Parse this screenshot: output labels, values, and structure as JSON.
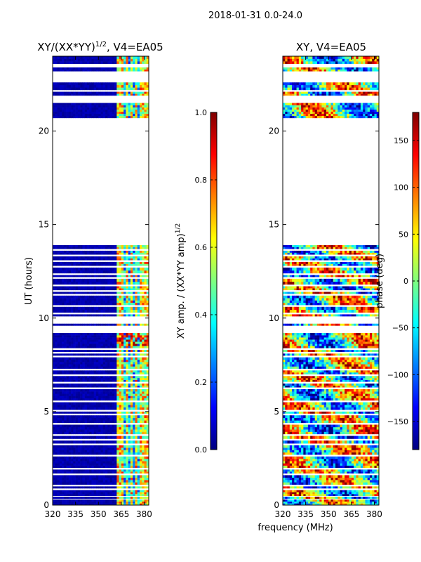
{
  "figure_title": "2018-01-31 0.0-24.0",
  "x_axis_shared_label": "frequency (MHz)",
  "colormap": [
    "#00007f",
    "#0000ff",
    "#007fff",
    "#00ffff",
    "#7fff7f",
    "#ffff00",
    "#ff7f00",
    "#ff0000",
    "#7f0000"
  ],
  "data_blocks": [
    {
      "start": 0.0,
      "end": 0.3
    },
    {
      "start": 0.35,
      "end": 0.45
    },
    {
      "start": 0.5,
      "end": 0.8
    },
    {
      "start": 0.9,
      "end": 1.0
    },
    {
      "start": 1.1,
      "end": 1.6
    },
    {
      "start": 1.7,
      "end": 1.9
    },
    {
      "start": 2.0,
      "end": 2.6
    },
    {
      "start": 2.7,
      "end": 3.2
    },
    {
      "start": 3.3,
      "end": 3.45
    },
    {
      "start": 3.55,
      "end": 3.7
    },
    {
      "start": 3.8,
      "end": 4.3
    },
    {
      "start": 4.4,
      "end": 4.8
    },
    {
      "start": 4.9,
      "end": 5.0
    },
    {
      "start": 5.1,
      "end": 5.5
    },
    {
      "start": 5.6,
      "end": 6.2
    },
    {
      "start": 6.3,
      "end": 6.5
    },
    {
      "start": 6.6,
      "end": 6.9
    },
    {
      "start": 7.0,
      "end": 7.2
    },
    {
      "start": 7.3,
      "end": 7.9
    },
    {
      "start": 8.0,
      "end": 8.1
    },
    {
      "start": 8.2,
      "end": 8.3
    },
    {
      "start": 8.4,
      "end": 9.2
    },
    {
      "start": 9.6,
      "end": 9.7
    },
    {
      "start": 10.1,
      "end": 10.2
    },
    {
      "start": 10.3,
      "end": 10.6
    },
    {
      "start": 10.7,
      "end": 11.2
    },
    {
      "start": 11.3,
      "end": 11.4
    },
    {
      "start": 11.5,
      "end": 11.7
    },
    {
      "start": 11.8,
      "end": 12.1
    },
    {
      "start": 12.2,
      "end": 12.3
    },
    {
      "start": 12.4,
      "end": 12.7
    },
    {
      "start": 12.8,
      "end": 13.0
    },
    {
      "start": 13.1,
      "end": 13.3
    },
    {
      "start": 13.4,
      "end": 13.6
    },
    {
      "start": 13.7,
      "end": 13.9
    },
    {
      "start": 20.7,
      "end": 21.5
    },
    {
      "start": 21.9,
      "end": 22.1
    },
    {
      "start": 22.2,
      "end": 22.6
    },
    {
      "start": 23.2,
      "end": 23.4
    },
    {
      "start": 23.6,
      "end": 24.0
    }
  ],
  "bright_channels_mhz": [
    362,
    364,
    366,
    369,
    372,
    375,
    378,
    380,
    382
  ],
  "chart_data": [
    {
      "type": "heatmap",
      "title": "XY/(XX*YY)",
      "title_exponent": "1/2",
      "title_suffix": ", V4=EA05",
      "xlabel": "",
      "ylabel": "UT (hours)",
      "xlim": [
        320,
        383
      ],
      "ylim": [
        0,
        24
      ],
      "xticks": [
        "320",
        "335",
        "350",
        "365",
        "380"
      ],
      "yticks": [
        "0",
        "5",
        "10",
        "15",
        "20"
      ],
      "colorbar": {
        "label": "XY amp. / (XX*YY amp)",
        "label_exponent": "1/2",
        "range": [
          0.0,
          1.0
        ],
        "ticks": [
          "0.0",
          "0.2",
          "0.4",
          "0.6",
          "0.8",
          "1.0"
        ]
      }
    },
    {
      "type": "heatmap",
      "title": "XY, V4=EA05",
      "xlabel": "frequency (MHz)",
      "ylabel": "",
      "xlim": [
        320,
        383
      ],
      "ylim": [
        0,
        24
      ],
      "xticks": [
        "320",
        "335",
        "350",
        "365",
        "380"
      ],
      "yticks": [
        "0",
        "5",
        "10",
        "15",
        "20"
      ],
      "colorbar": {
        "label": "phase (deg)",
        "range": [
          -180,
          180
        ],
        "ticks": [
          "−150",
          "−100",
          "−50",
          "0",
          "50",
          "100",
          "150"
        ]
      }
    }
  ]
}
